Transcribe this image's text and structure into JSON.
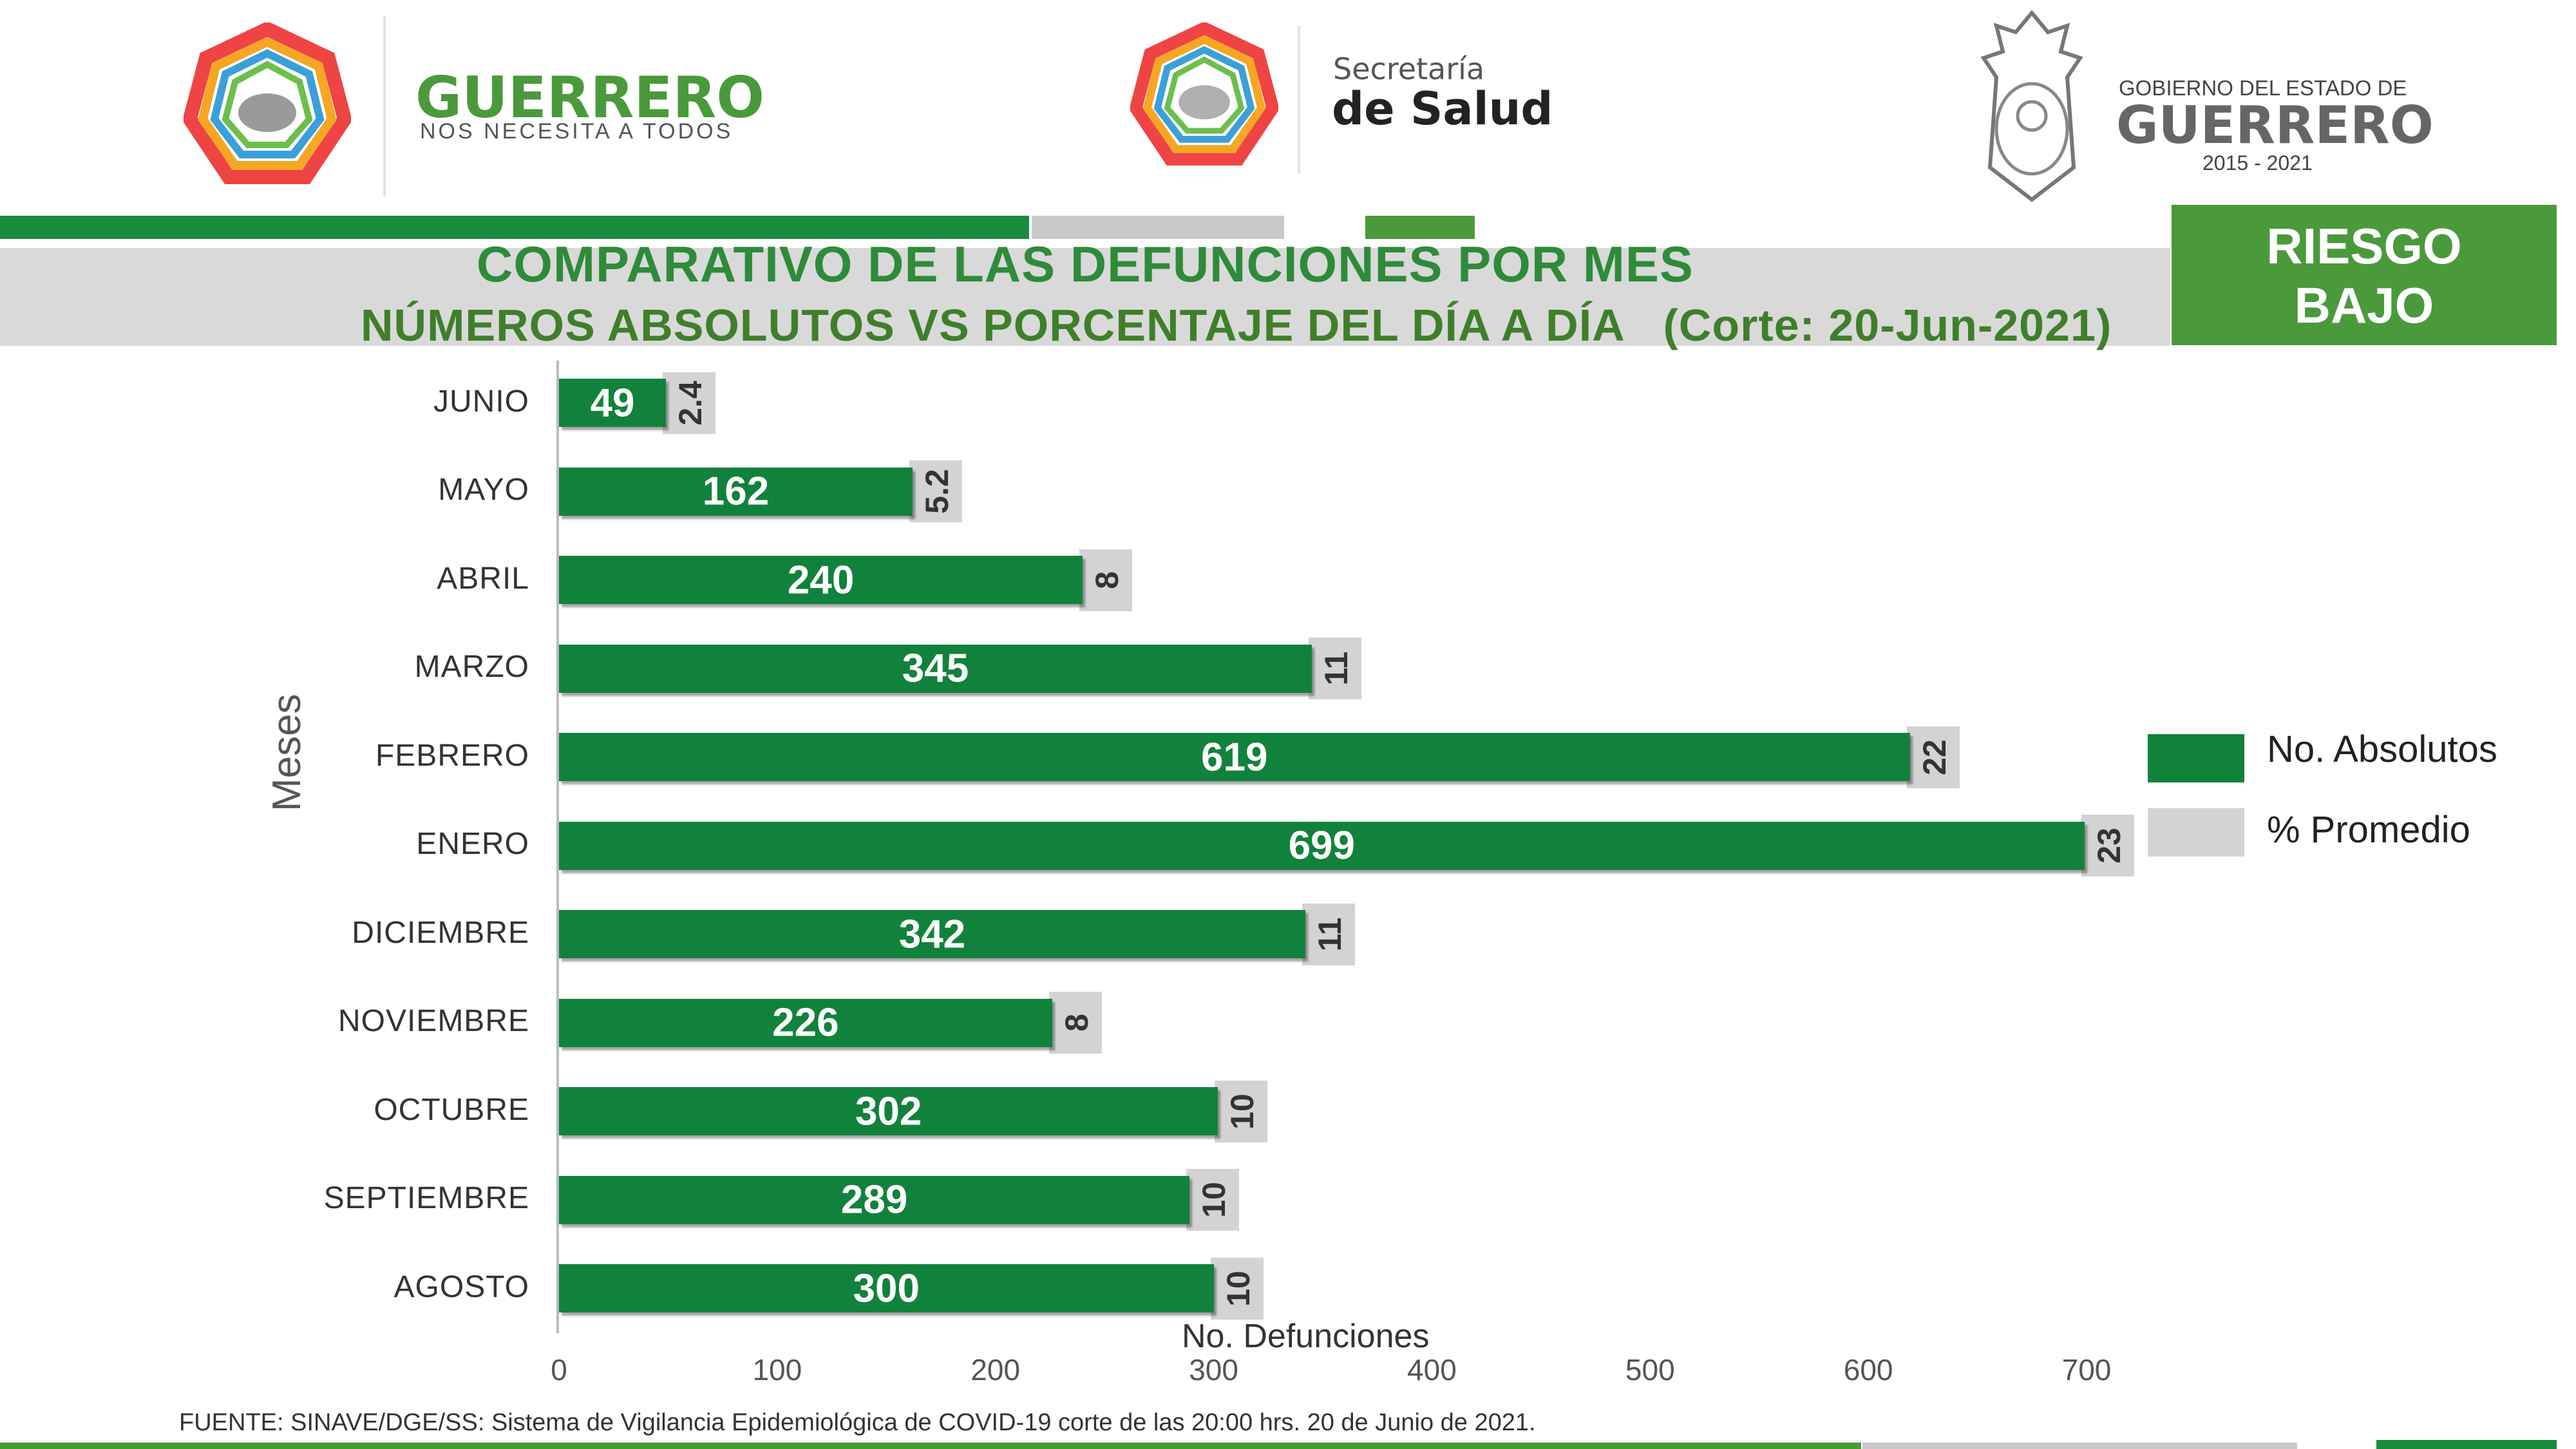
{
  "header": {
    "left_logo": {
      "title": "GUERRERO",
      "subtitle": "NOS NECESITA A TODOS"
    },
    "center_logo": {
      "line1": "Secretaría",
      "line2": "de Salud"
    },
    "right_logo": {
      "line1": "GOBIERNO DEL ESTADO DE",
      "line2": "GUERRERO",
      "line3": "2015 - 2021"
    }
  },
  "risk_badge": {
    "line1": "RIESGO",
    "line2": "BAJO"
  },
  "colors": {
    "absolute": "#11823b",
    "percent": "#d3d3d3",
    "title": "#2e8b3a",
    "badge": "#4a9a3b"
  },
  "chart_data": {
    "type": "bar",
    "orientation": "horizontal",
    "title": "COMPARATIVO DE LAS DEFUNCIONES POR MES",
    "subtitle": "NÚMEROS ABSOLUTOS VS PORCENTAJE DEL DÍA A DÍA   (Corte: 20-Jun-2021)",
    "ylabel": "Meses",
    "xlabel": "No. Defunciones",
    "xlim": [
      0,
      700
    ],
    "xticks": [
      "0",
      "100",
      "200",
      "300",
      "400",
      "500",
      "600",
      "700"
    ],
    "categories": [
      "JUNIO",
      "MAYO",
      "ABRIL",
      "MARZO",
      "FEBRERO",
      "ENERO",
      "DICIEMBRE",
      "NOVIEMBRE",
      "OCTUBRE",
      "SEPTIEMBRE",
      "AGOSTO"
    ],
    "series": [
      {
        "name": "No. Absolutos",
        "values": [
          49,
          162,
          240,
          345,
          619,
          699,
          342,
          226,
          302,
          289,
          300
        ]
      },
      {
        "name": "% Promedio",
        "values": [
          2.4,
          5.2,
          8,
          11,
          22,
          23,
          11,
          8,
          10,
          10,
          10
        ]
      }
    ],
    "legend": "right"
  },
  "source": "FUENTE: SINAVE/DGE/SS: Sistema de Vigilancia Epidemiológica de COVID-19 corte de las 20:00 hrs. 20 de Junio de 2021."
}
